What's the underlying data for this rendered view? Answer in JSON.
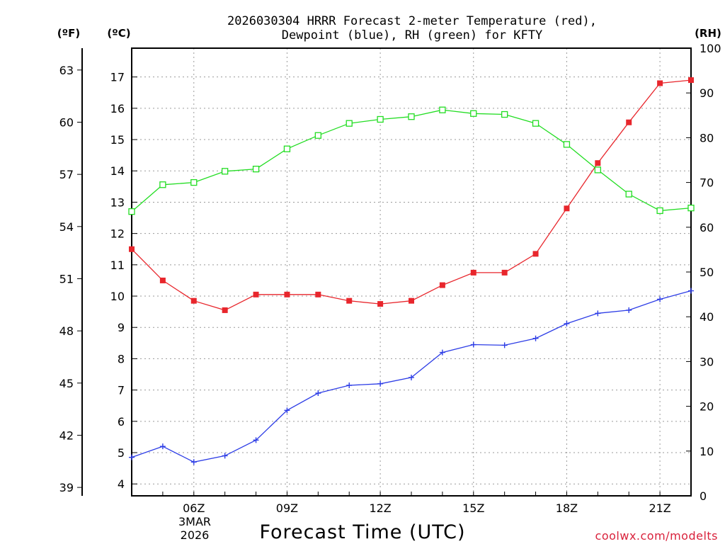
{
  "chart_data": {
    "type": "line",
    "title_lines": [
      "2026030304 HRRR Forecast 2-meter Temperature (red),",
      "Dewpoint (blue), RH (green) for KFTY"
    ],
    "units": {
      "fahrenheit": "(ºF)",
      "celsius": "(ºC)",
      "rh": "(RH)"
    },
    "xlabel": "Forecast Time (UTC)",
    "x_hours": [
      4,
      5,
      6,
      7,
      8,
      9,
      10,
      11,
      12,
      13,
      14,
      15,
      16,
      17,
      18,
      19,
      20,
      21,
      22
    ],
    "xlim": [
      4,
      22
    ],
    "x_ticks": [
      {
        "hour": 6,
        "label": "06Z"
      },
      {
        "hour": 9,
        "label": "09Z"
      },
      {
        "hour": 12,
        "label": "12Z"
      },
      {
        "hour": 15,
        "label": "15Z"
      },
      {
        "hour": 18,
        "label": "18Z"
      },
      {
        "hour": 21,
        "label": "21Z"
      }
    ],
    "date_label": [
      "3MAR",
      "2026"
    ],
    "ylim_c": [
      3.62,
      17.92
    ],
    "ylim_rh": [
      0,
      100
    ],
    "c_ticks": [
      "4",
      "5",
      "6",
      "7",
      "8",
      "9",
      "10",
      "11",
      "12",
      "13",
      "14",
      "15",
      "16",
      "17"
    ],
    "f_ticks": [
      "39",
      "42",
      "45",
      "48",
      "51",
      "54",
      "57",
      "60",
      "63"
    ],
    "rh_ticks": [
      "0",
      "10",
      "20",
      "30",
      "40",
      "50",
      "60",
      "70",
      "80",
      "90",
      "100"
    ],
    "series": [
      {
        "name": "Temperature",
        "unit": "C",
        "color": "#e8262c",
        "marker": "filled-square",
        "values": [
          11.5,
          10.5,
          9.85,
          9.55,
          10.05,
          10.05,
          10.05,
          9.85,
          9.75,
          9.85,
          10.35,
          10.75,
          10.75,
          11.35,
          12.8,
          14.25,
          15.55,
          16.8,
          16.9
        ]
      },
      {
        "name": "Dewpoint",
        "unit": "C",
        "color": "#2d3de6",
        "marker": "plus",
        "values": [
          4.85,
          5.2,
          4.7,
          4.9,
          5.4,
          6.35,
          6.9,
          7.15,
          7.2,
          7.4,
          8.2,
          8.45,
          8.43,
          8.65,
          9.12,
          9.45,
          9.55,
          9.9,
          10.17
        ]
      },
      {
        "name": "Relative Humidity",
        "unit": "%",
        "color": "#22dd22",
        "marker": "open-square",
        "values": [
          63.5,
          69.5,
          70.0,
          72.5,
          73.0,
          77.5,
          80.5,
          83.2,
          84.1,
          84.7,
          86.2,
          85.4,
          85.2,
          83.2,
          78.5,
          72.8,
          67.4,
          63.7,
          64.3
        ]
      }
    ],
    "credit": "coolwx.com/modelts"
  }
}
